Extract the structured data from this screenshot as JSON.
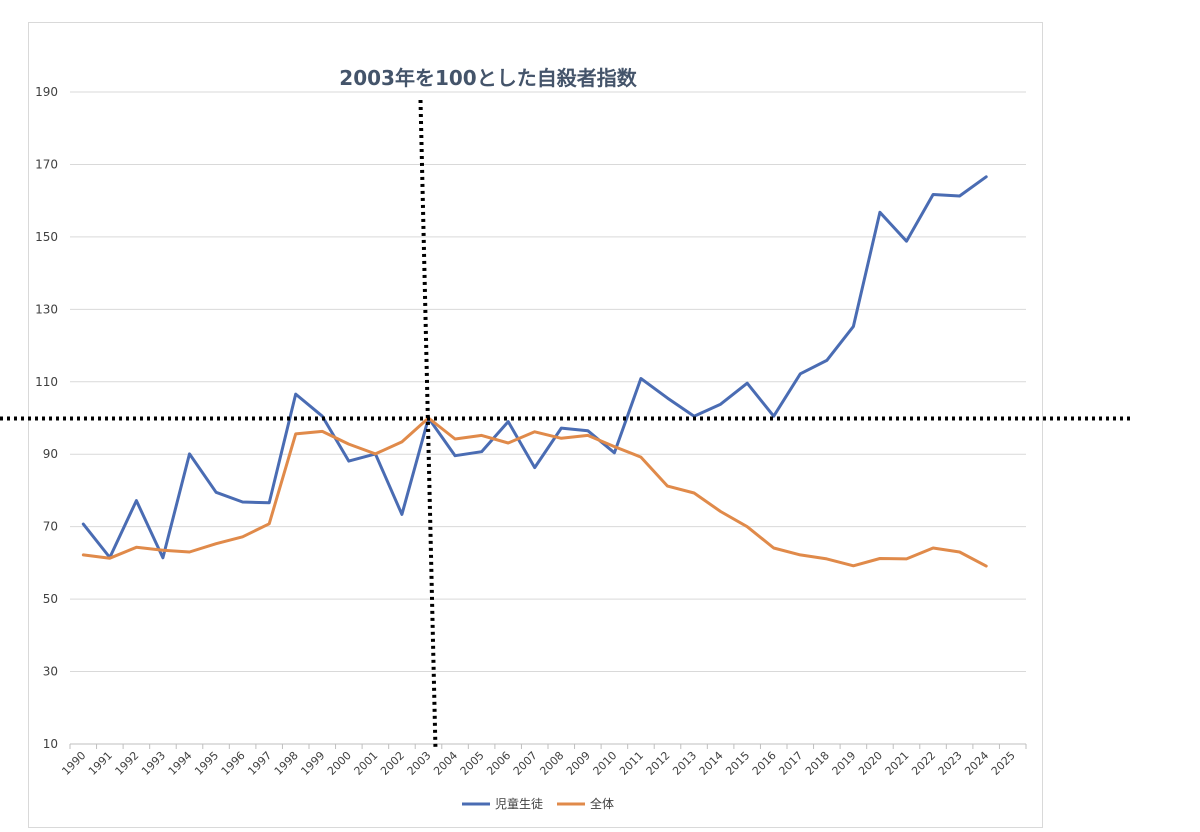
{
  "chart_data": {
    "type": "line",
    "title": "2003年を100とした自殺者指数",
    "xlabel": "",
    "ylabel": "",
    "ylim": [
      10,
      190
    ],
    "yticks": [
      10,
      30,
      50,
      70,
      90,
      110,
      130,
      150,
      170,
      190
    ],
    "categories": [
      "1990",
      "1991",
      "1992",
      "1993",
      "1994",
      "1995",
      "1996",
      "1997",
      "1998",
      "1999",
      "2000",
      "2001",
      "2002",
      "2003",
      "2004",
      "2005",
      "2006",
      "2007",
      "2008",
      "2009",
      "2010",
      "2011",
      "2012",
      "2013",
      "2014",
      "2015",
      "2016",
      "2017",
      "2018",
      "2019",
      "2020",
      "2021",
      "2022",
      "2023",
      "2024",
      "2025"
    ],
    "grid": "horizontal",
    "legend_position": "bottom",
    "reference_lines": {
      "x": "2003",
      "y": 100,
      "style": "dotted",
      "color": "#000000"
    },
    "series": [
      {
        "name": "児童生徒",
        "color": "#4a6cb3",
        "values": [
          70.7,
          61.5,
          77.2,
          61.4,
          90.1,
          79.5,
          76.8,
          76.6,
          106.6,
          100.5,
          88.1,
          90.1,
          73.4,
          100,
          89.6,
          90.7,
          99.0,
          86.3,
          97.2,
          96.5,
          90.4,
          110.9,
          105.5,
          100.5,
          103.8,
          109.6,
          100.5,
          112.2,
          115.9,
          125.3,
          156.8,
          148.8,
          161.7,
          161.3,
          166.6,
          null
        ]
      },
      {
        "name": "全体",
        "color": "#e08a4a",
        "values": [
          62.2,
          61.3,
          64.3,
          63.5,
          63.0,
          65.3,
          67.2,
          70.8,
          95.6,
          96.3,
          92.8,
          90.1,
          93.4,
          100,
          94.2,
          95.2,
          93.1,
          96.2,
          94.4,
          95.2,
          92.1,
          89.2,
          81.2,
          79.3,
          74.2,
          70.0,
          64.1,
          62.2,
          61.1,
          59.2,
          61.2,
          61.1,
          64.1,
          63.0,
          59.1,
          null
        ]
      }
    ]
  }
}
